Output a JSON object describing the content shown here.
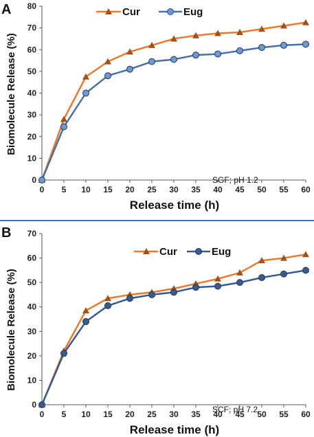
{
  "chart_data": [
    {
      "panel_label": "A",
      "type": "line",
      "title": "",
      "xlabel": "Release time (h)",
      "ylabel": "Biomolecule Release (%)",
      "annotation": "SGF; pH 1.2",
      "x": [
        0,
        5,
        10,
        15,
        20,
        25,
        30,
        35,
        40,
        45,
        50,
        55,
        60
      ],
      "xticks": [
        "0",
        "5",
        "10",
        "15",
        "20",
        "25",
        "30",
        "35",
        "40",
        "45",
        "50",
        "55",
        "60"
      ],
      "ylim": [
        0,
        80
      ],
      "yticks": [
        "0",
        "10",
        "20",
        "30",
        "40",
        "50",
        "60",
        "70",
        "80"
      ],
      "grid": false,
      "legend": "top-left",
      "series": [
        {
          "name": "Cur",
          "marker": "triangle",
          "color": "#E8792D",
          "marker_color": "#A0521A",
          "values": [
            0,
            28,
            47.5,
            54.5,
            59,
            62,
            65,
            66.5,
            67.5,
            68,
            69.5,
            71,
            72.5
          ]
        },
        {
          "name": "Eug",
          "marker": "circle",
          "color": "#4A6FA5",
          "marker_color": "#6B9BD1",
          "values": [
            0,
            24.5,
            40,
            48,
            51,
            54.5,
            55.5,
            57.5,
            58,
            59.5,
            61,
            62,
            62.5
          ]
        }
      ]
    },
    {
      "panel_label": "B",
      "type": "line",
      "title": "",
      "xlabel": "Release time (h)",
      "ylabel": "Biomolecule Release (%)",
      "annotation": "SCF; pH 7.2",
      "x": [
        0,
        5,
        10,
        15,
        20,
        25,
        30,
        35,
        40,
        45,
        50,
        55,
        60
      ],
      "xticks": [
        "0",
        "5",
        "10",
        "15",
        "20",
        "25",
        "30",
        "35",
        "40",
        "45",
        "50",
        "55",
        "60"
      ],
      "ylim": [
        0,
        70
      ],
      "yticks": [
        "0",
        "10",
        "20",
        "30",
        "40",
        "50",
        "60",
        "70"
      ],
      "grid": false,
      "legend": "top-left",
      "series": [
        {
          "name": "Cur",
          "marker": "triangle",
          "color": "#E8792D",
          "marker_color": "#A0521A",
          "values": [
            0,
            22,
            38.5,
            43.5,
            45,
            46,
            47.5,
            49.5,
            51.5,
            54,
            59,
            60,
            61.5
          ]
        },
        {
          "name": "Eug",
          "marker": "circle",
          "color": "#3A5A8C",
          "marker_color": "#3A5A8C",
          "values": [
            0,
            21,
            34,
            40.5,
            43.5,
            45,
            46,
            48,
            48.5,
            50,
            52,
            53.5,
            55
          ]
        }
      ]
    }
  ]
}
